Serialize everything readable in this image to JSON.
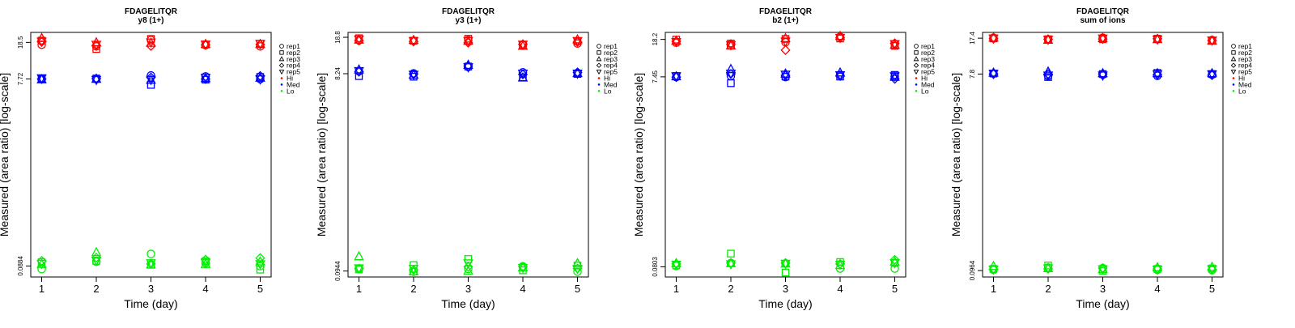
{
  "chart_data": [
    {
      "type": "scatter",
      "title": "FDAGELITQR",
      "subtitle": "y8 (1+)",
      "xlabel": "Time (day)",
      "ylabel": "Measured (area ratio) [log-scale]",
      "y_scale": "log",
      "x_ticks": [
        "1",
        "2",
        "3",
        "4",
        "5"
      ],
      "y_ticks": [
        {
          "value": 0.0884,
          "label": "0.0884"
        },
        {
          "value": 7.72,
          "label": "7.72"
        },
        {
          "value": 18.5,
          "label": "18.5"
        }
      ],
      "ylim": [
        0.068,
        23.5
      ],
      "xlim": [
        0.8,
        5.2
      ],
      "legend_position": "right",
      "series": [
        {
          "name": "Hi",
          "color": "#ff0000",
          "points": {
            "rep1": [
              17.5,
              16.8,
              19.6,
              17.3,
              16.8
            ],
            "rep2": [
              19.3,
              15.8,
              20.1,
              17.6,
              17.9
            ],
            "rep3": [
              20.4,
              18.4,
              18.2,
              17.7,
              17.7
            ],
            "rep4": [
              18.7,
              17.2,
              17.0,
              17.4,
              17.6
            ],
            "rep5": [
              19.0,
              17.6,
              18.6,
              17.7,
              18.0
            ]
          }
        },
        {
          "name": "Med",
          "color": "#0000ff",
          "points": {
            "rep1": [
              7.7,
              7.7,
              8.4,
              8.2,
              7.7
            ],
            "rep2": [
              7.8,
              7.8,
              6.7,
              7.6,
              8.1
            ],
            "rep3": [
              7.6,
              7.7,
              7.5,
              7.8,
              7.9
            ],
            "rep4": [
              7.7,
              7.8,
              8.0,
              7.7,
              8.3
            ],
            "rep5": [
              7.9,
              7.6,
              7.6,
              8.0,
              7.7
            ]
          }
        },
        {
          "name": "Lo",
          "color": "#00ee00",
          "points": {
            "rep1": [
              0.082,
              0.098,
              0.118,
              0.095,
              0.088
            ],
            "rep2": [
              0.097,
              0.1,
              0.091,
              0.099,
              0.081
            ],
            "rep3": [
              0.092,
              0.122,
              0.091,
              0.092,
              0.098
            ],
            "rep4": [
              0.1,
              0.108,
              0.093,
              0.103,
              0.107
            ],
            "rep5": [
              0.094,
              0.101,
              0.095,
              0.097,
              0.093
            ]
          }
        }
      ]
    },
    {
      "type": "scatter",
      "title": "FDAGELITQR",
      "subtitle": "y3 (1+)",
      "xlabel": "Time (day)",
      "ylabel": "Measured (area ratio) [log-scale]",
      "y_scale": "log",
      "x_ticks": [
        "1",
        "2",
        "3",
        "4",
        "5"
      ],
      "y_ticks": [
        {
          "value": 0.0944,
          "label": "0.0944"
        },
        {
          "value": 8.24,
          "label": "8.24"
        },
        {
          "value": 18.8,
          "label": "18.8"
        }
      ],
      "ylim": [
        0.0825,
        21.0
      ],
      "xlim": [
        0.8,
        5.2
      ],
      "legend_position": "right",
      "series": [
        {
          "name": "Hi",
          "color": "#ff0000",
          "points": {
            "rep1": [
              17.5,
              17.3,
              17.6,
              15.8,
              16.3
            ],
            "rep2": [
              18.4,
              17.4,
              18.2,
              15.9,
              17.2
            ],
            "rep3": [
              17.7,
              17.6,
              17.2,
              15.4,
              17.8
            ],
            "rep4": [
              17.4,
              17.1,
              16.6,
              16.1,
              16.9
            ],
            "rep5": [
              18.0,
              17.4,
              17.4,
              16.0,
              17.4
            ]
          }
        },
        {
          "name": "Med",
          "color": "#0000ff",
          "points": {
            "rep1": [
              8.7,
              8.3,
              9.6,
              8.5,
              8.4
            ],
            "rep2": [
              7.8,
              7.7,
              9.7,
              7.6,
              8.2
            ],
            "rep3": [
              9.0,
              8.0,
              10.0,
              7.5,
              8.3
            ],
            "rep4": [
              8.6,
              8.2,
              9.8,
              8.1,
              8.5
            ],
            "rep5": [
              8.8,
              8.1,
              9.6,
              8.3,
              8.3
            ]
          }
        },
        {
          "name": "Lo",
          "color": "#00ee00",
          "points": {
            "rep1": [
              0.099,
              0.093,
              0.099,
              0.105,
              0.093
            ],
            "rep2": [
              0.098,
              0.108,
              0.124,
              0.096,
              0.107
            ],
            "rep3": [
              0.131,
              0.093,
              0.094,
              0.102,
              0.112
            ],
            "rep4": [
              0.1,
              0.097,
              0.104,
              0.104,
              0.1
            ],
            "rep5": [
              0.101,
              0.1,
              0.113,
              0.102,
              0.1
            ]
          }
        }
      ]
    },
    {
      "type": "scatter",
      "title": "FDAGELITQR",
      "subtitle": "b2 (1+)",
      "xlabel": "Time (day)",
      "ylabel": "Measured (area ratio) [log-scale]",
      "y_scale": "log",
      "x_ticks": [
        "1",
        "2",
        "3",
        "4",
        "5"
      ],
      "y_ticks": [
        {
          "value": 0.0803,
          "label": "0.0803"
        },
        {
          "value": 7.45,
          "label": "7.45"
        },
        {
          "value": 18.2,
          "label": "18.2"
        }
      ],
      "ylim": [
        0.063,
        21.5
      ],
      "xlim": [
        0.8,
        5.2
      ],
      "legend_position": "right",
      "series": [
        {
          "name": "Hi",
          "color": "#ff0000",
          "points": {
            "rep1": [
              16.8,
              15.7,
              17.0,
              19.4,
              16.3
            ],
            "rep2": [
              18.1,
              16.5,
              18.4,
              18.6,
              15.6
            ],
            "rep3": [
              17.5,
              15.6,
              18.6,
              19.6,
              15.9
            ],
            "rep4": [
              17.4,
              16.3,
              14.1,
              18.9,
              16.6
            ],
            "rep5": [
              17.2,
              16.0,
              17.4,
              19.0,
              16.4
            ]
          }
        },
        {
          "name": "Med",
          "color": "#0000ff",
          "points": {
            "rep1": [
              7.4,
              7.6,
              7.4,
              7.8,
              7.5
            ],
            "rep2": [
              7.6,
              6.4,
              7.5,
              7.5,
              7.8
            ],
            "rep3": [
              7.5,
              8.9,
              8.0,
              8.2,
              7.4
            ],
            "rep4": [
              7.4,
              8.0,
              7.7,
              7.6,
              7.1
            ],
            "rep5": [
              7.6,
              8.1,
              7.9,
              7.8,
              7.6
            ]
          }
        },
        {
          "name": "Lo",
          "color": "#00ee00",
          "points": {
            "rep1": [
              0.082,
              0.088,
              0.087,
              0.077,
              0.077
            ],
            "rep2": [
              0.083,
              0.11,
              0.07,
              0.09,
              0.088
            ],
            "rep3": [
              0.087,
              0.087,
              0.086,
              0.083,
              0.09
            ],
            "rep4": [
              0.086,
              0.088,
              0.088,
              0.086,
              0.095
            ],
            "rep5": [
              0.085,
              0.086,
              0.087,
              0.085,
              0.088
            ]
          }
        }
      ]
    },
    {
      "type": "scatter",
      "title": "FDAGELITQR",
      "subtitle": "sum of ions",
      "xlabel": "Time (day)",
      "ylabel": "Measured (area ratio) [log-scale]",
      "y_scale": "log",
      "x_ticks": [
        "1",
        "2",
        "3",
        "4",
        "5"
      ],
      "y_ticks": [
        {
          "value": 0.0964,
          "label": "0.0964"
        },
        {
          "value": 7.8,
          "label": "7.8"
        },
        {
          "value": 17.4,
          "label": "17.4"
        }
      ],
      "ylim": [
        0.0835,
        19.8
      ],
      "xlim": [
        0.8,
        5.2
      ],
      "legend_position": "right",
      "series": [
        {
          "name": "Hi",
          "color": "#ff0000",
          "points": {
            "rep1": [
              17.6,
              16.9,
              17.6,
              17.0,
              16.7
            ],
            "rep2": [
              17.3,
              17.0,
              17.0,
              17.2,
              16.4
            ],
            "rep3": [
              17.5,
              16.7,
              17.3,
              16.9,
              16.4
            ],
            "rep4": [
              17.2,
              17.0,
              17.1,
              17.2,
              16.5
            ],
            "rep5": [
              17.4,
              16.9,
              17.4,
              17.0,
              16.6
            ]
          }
        },
        {
          "name": "Med",
          "color": "#0000ff",
          "points": {
            "rep1": [
              7.9,
              7.5,
              7.7,
              7.5,
              7.7
            ],
            "rep2": [
              7.9,
              7.3,
              7.8,
              8.0,
              7.8
            ],
            "rep3": [
              8.0,
              8.2,
              7.9,
              7.9,
              7.9
            ],
            "rep4": [
              7.8,
              7.8,
              7.8,
              7.7,
              7.6
            ],
            "rep5": [
              7.9,
              7.6,
              7.6,
              7.8,
              7.8
            ]
          }
        },
        {
          "name": "Lo",
          "color": "#00ee00",
          "points": {
            "rep1": [
              0.098,
              0.103,
              0.102,
              0.098,
              0.097
            ],
            "rep2": [
              0.1,
              0.108,
              0.096,
              0.1,
              0.101
            ],
            "rep3": [
              0.106,
              0.101,
              0.099,
              0.103,
              0.104
            ],
            "rep4": [
              0.099,
              0.1,
              0.102,
              0.1,
              0.099
            ],
            "rep5": [
              0.099,
              0.102,
              0.1,
              0.099,
              0.1
            ]
          }
        }
      ]
    }
  ],
  "legend": {
    "reps": [
      {
        "label": "rep1",
        "shape": "circle"
      },
      {
        "label": "rep2",
        "shape": "square"
      },
      {
        "label": "rep3",
        "shape": "triangle-up"
      },
      {
        "label": "rep4",
        "shape": "diamond"
      },
      {
        "label": "rep5",
        "shape": "triangle-down"
      }
    ],
    "groups": [
      {
        "label": "Hi",
        "color": "#ff0000"
      },
      {
        "label": "Med",
        "color": "#0000ff"
      },
      {
        "label": "Lo",
        "color": "#00ee00"
      }
    ]
  }
}
